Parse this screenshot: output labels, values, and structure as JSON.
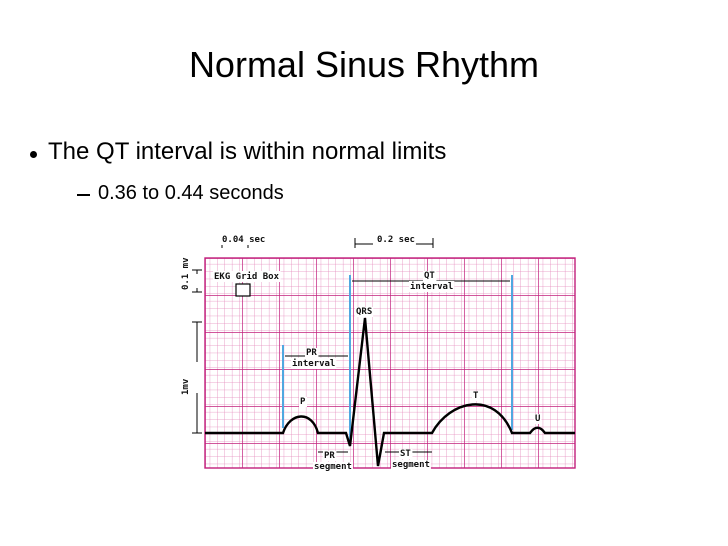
{
  "slide": {
    "title": "Normal Sinus Rhythm",
    "bullet": "The QT interval is within normal limits",
    "sub_bullet": "0.36 to 0.44 seconds"
  },
  "diagram": {
    "small_box_time": "0.04 sec",
    "large_box_time": "0.2 sec",
    "small_box_voltage": "0.1 mv",
    "large_box_voltage": "1mv",
    "grid_box": "EKG Grid Box",
    "qt": "QT",
    "qt_sub": "interval",
    "qrs": "QRS",
    "pr_interval": "PR",
    "pr_interval_sub": "interval",
    "p": "P",
    "t": "T",
    "u": "U",
    "pr_segment": "PR",
    "pr_segment_sub": "segment",
    "st_segment": "ST",
    "st_segment_sub": "segment"
  }
}
